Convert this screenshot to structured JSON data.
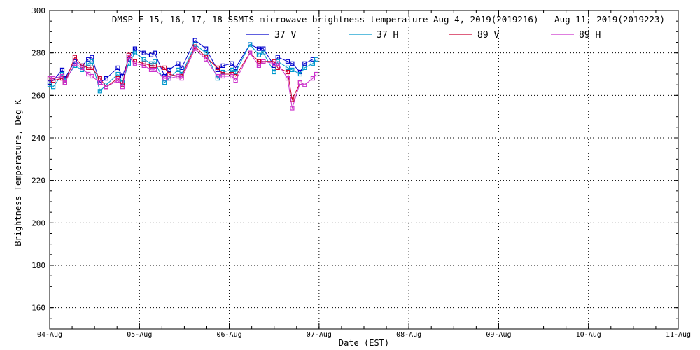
{
  "chart_data": {
    "type": "line",
    "title": "DMSP F-15,-16,-17,-18 SSMIS microwave brightness temperature Aug  4, 2019(2019216) - Aug 11, 2019(2019223)",
    "xlabel": "Date (EST)",
    "ylabel": "Brightness Temperature, Deg K",
    "xlim": [
      "04-Aug",
      "11-Aug"
    ],
    "ylim": [
      150,
      300
    ],
    "x_ticks": [
      "04-Aug",
      "05-Aug",
      "06-Aug",
      "07-Aug",
      "08-Aug",
      "09-Aug",
      "10-Aug",
      "11-Aug"
    ],
    "y_ticks": [
      160,
      180,
      200,
      220,
      240,
      260,
      280,
      300
    ],
    "grid": true,
    "legend_position": "top",
    "series": [
      {
        "name": "37 V",
        "color": "#0000cc",
        "points": [
          [
            0.0,
            266
          ],
          [
            0.04,
            267
          ],
          [
            0.14,
            272
          ],
          [
            0.17,
            268
          ],
          [
            0.28,
            276
          ],
          [
            0.36,
            274
          ],
          [
            0.43,
            277
          ],
          [
            0.47,
            278
          ],
          [
            0.56,
            266
          ],
          [
            0.63,
            268
          ],
          [
            0.76,
            273
          ],
          [
            0.81,
            269
          ],
          [
            0.88,
            277
          ],
          [
            0.95,
            282
          ],
          [
            1.05,
            280
          ],
          [
            1.13,
            279
          ],
          [
            1.17,
            280
          ],
          [
            1.28,
            269
          ],
          [
            1.33,
            272
          ],
          [
            1.43,
            275
          ],
          [
            1.47,
            273
          ],
          [
            1.62,
            286
          ],
          [
            1.74,
            282
          ],
          [
            1.87,
            272
          ],
          [
            1.93,
            274
          ],
          [
            2.03,
            275
          ],
          [
            2.07,
            273
          ],
          [
            2.23,
            284
          ],
          [
            2.33,
            282
          ],
          [
            2.38,
            282
          ],
          [
            2.5,
            274
          ],
          [
            2.54,
            278
          ],
          [
            2.65,
            276
          ],
          [
            2.7,
            275
          ],
          [
            2.79,
            271
          ],
          [
            2.84,
            275
          ],
          [
            2.93,
            277
          ]
        ]
      },
      {
        "name": "37 H",
        "color": "#0099cc",
        "points": [
          [
            0.0,
            265
          ],
          [
            0.04,
            264
          ],
          [
            0.14,
            270
          ],
          [
            0.17,
            267
          ],
          [
            0.28,
            274
          ],
          [
            0.36,
            272
          ],
          [
            0.43,
            275
          ],
          [
            0.47,
            276
          ],
          [
            0.56,
            262
          ],
          [
            0.63,
            265
          ],
          [
            0.76,
            270
          ],
          [
            0.81,
            266
          ],
          [
            0.88,
            275
          ],
          [
            0.95,
            280
          ],
          [
            1.05,
            277
          ],
          [
            1.13,
            275
          ],
          [
            1.17,
            276
          ],
          [
            1.28,
            266
          ],
          [
            1.33,
            268
          ],
          [
            1.43,
            272
          ],
          [
            1.47,
            270
          ],
          [
            1.62,
            284
          ],
          [
            1.74,
            280
          ],
          [
            1.87,
            268
          ],
          [
            1.93,
            271
          ],
          [
            2.03,
            272
          ],
          [
            2.07,
            271
          ],
          [
            2.23,
            284
          ],
          [
            2.33,
            279
          ],
          [
            2.38,
            280
          ],
          [
            2.5,
            271
          ],
          [
            2.54,
            276
          ],
          [
            2.65,
            273
          ],
          [
            2.7,
            272
          ],
          [
            2.79,
            270
          ],
          [
            2.84,
            273
          ],
          [
            2.93,
            275
          ],
          [
            2.97,
            277
          ]
        ]
      },
      {
        "name": "89 V",
        "color": "#cc0033",
        "points": [
          [
            0.0,
            268
          ],
          [
            0.04,
            267
          ],
          [
            0.14,
            268
          ],
          [
            0.17,
            266
          ],
          [
            0.28,
            278
          ],
          [
            0.36,
            274
          ],
          [
            0.43,
            273
          ],
          [
            0.47,
            273
          ],
          [
            0.56,
            268
          ],
          [
            0.63,
            264
          ],
          [
            0.76,
            268
          ],
          [
            0.81,
            265
          ],
          [
            0.88,
            279
          ],
          [
            0.95,
            276
          ],
          [
            1.05,
            275
          ],
          [
            1.13,
            274
          ],
          [
            1.17,
            274
          ],
          [
            1.28,
            273
          ],
          [
            1.33,
            270
          ],
          [
            1.43,
            269
          ],
          [
            1.47,
            269
          ],
          [
            1.62,
            283
          ],
          [
            1.74,
            278
          ],
          [
            1.87,
            273
          ],
          [
            1.93,
            270
          ],
          [
            2.03,
            270
          ],
          [
            2.07,
            269
          ],
          [
            2.23,
            280
          ],
          [
            2.33,
            276
          ],
          [
            2.38,
            276
          ],
          [
            2.5,
            276
          ],
          [
            2.54,
            273
          ],
          [
            2.65,
            271
          ],
          [
            2.7,
            258
          ],
          [
            2.79,
            266
          ]
        ]
      },
      {
        "name": "89 H",
        "color": "#cc33cc",
        "points": [
          [
            0.0,
            268
          ],
          [
            0.04,
            268
          ],
          [
            0.14,
            269
          ],
          [
            0.17,
            266
          ],
          [
            0.28,
            275
          ],
          [
            0.36,
            273
          ],
          [
            0.43,
            270
          ],
          [
            0.47,
            269
          ],
          [
            0.56,
            266
          ],
          [
            0.63,
            264
          ],
          [
            0.76,
            267
          ],
          [
            0.81,
            264
          ],
          [
            0.88,
            278
          ],
          [
            0.95,
            275
          ],
          [
            1.05,
            274
          ],
          [
            1.13,
            272
          ],
          [
            1.17,
            272
          ],
          [
            1.28,
            268
          ],
          [
            1.33,
            268
          ],
          [
            1.43,
            269
          ],
          [
            1.47,
            268
          ],
          [
            1.62,
            282
          ],
          [
            1.74,
            277
          ],
          [
            1.87,
            269
          ],
          [
            1.93,
            269
          ],
          [
            2.03,
            269
          ],
          [
            2.07,
            267
          ],
          [
            2.23,
            280
          ],
          [
            2.33,
            274
          ],
          [
            2.38,
            276
          ],
          [
            2.5,
            275
          ],
          [
            2.54,
            275
          ],
          [
            2.65,
            268
          ],
          [
            2.7,
            254
          ],
          [
            2.79,
            266
          ],
          [
            2.84,
            265
          ],
          [
            2.93,
            268
          ],
          [
            2.97,
            270
          ]
        ]
      }
    ]
  }
}
